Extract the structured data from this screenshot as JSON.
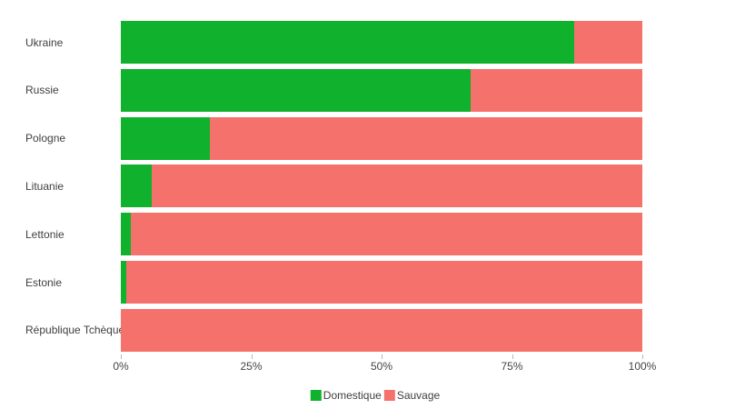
{
  "chart_data": {
    "type": "bar",
    "orientation": "horizontal",
    "stacked": true,
    "title": "",
    "xlabel": "",
    "ylabel": "",
    "unit": "percent",
    "categories": [
      "Ukraine",
      "Russie",
      "Pologne",
      "Lituanie",
      "Lettonie",
      "Estonie",
      "République Tchèque"
    ],
    "series": [
      {
        "name": "Domestique",
        "color": "#10b12c",
        "values": [
          87,
          67,
          17,
          6,
          2,
          1,
          0
        ]
      },
      {
        "name": "Sauvage",
        "color": "#f5716b",
        "values": [
          13,
          33,
          83,
          94,
          98,
          99,
          100
        ]
      }
    ],
    "xlim": [
      0,
      100
    ],
    "x_ticks": [
      {
        "value": 0,
        "label": "0%"
      },
      {
        "value": 25,
        "label": "25%"
      },
      {
        "value": 50,
        "label": "50%"
      },
      {
        "value": 75,
        "label": "75%"
      },
      {
        "value": 100,
        "label": "100%"
      }
    ],
    "grid": false,
    "legend_position": "bottom-center"
  },
  "colors": {
    "domestique_green": "#10b12c",
    "sauvage_salmon": "#f5716b",
    "category_text": "#3f3f3f",
    "tick_text": "#444444",
    "tick_mark": "#b9b9b9",
    "background": "#ffffff"
  }
}
